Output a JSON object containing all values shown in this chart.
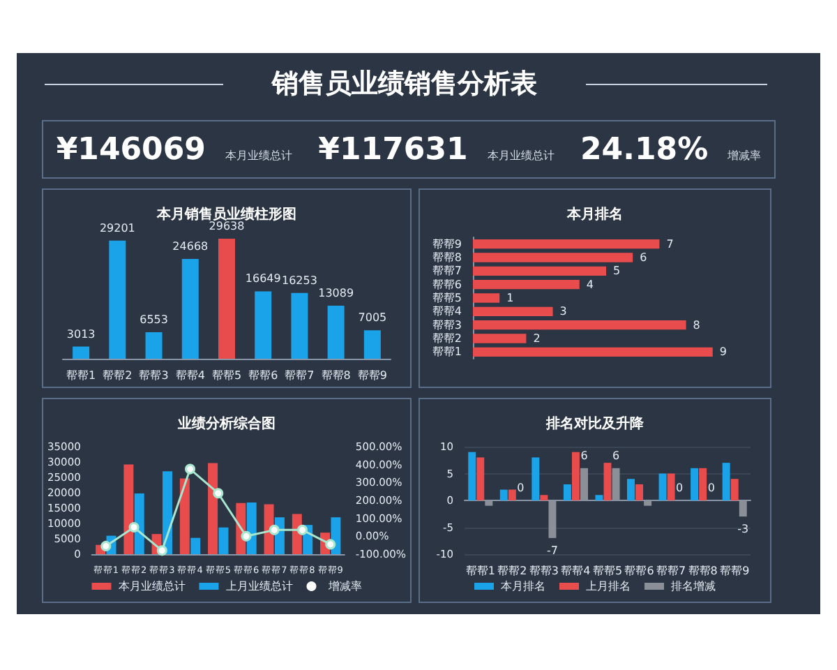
{
  "chart_data": [
    {
      "type": "other",
      "title": "销售员业绩销售分析表",
      "annotations": [
        "¥146069",
        "本月业绩总计",
        "¥117631",
        "本月业绩总计",
        "24.18%",
        "增减率"
      ]
    },
    {
      "type": "bar",
      "title": "本月销售员业绩柱形图",
      "categories": [
        "帮帮1",
        "帮帮2",
        "帮帮3",
        "帮帮4",
        "帮帮5",
        "帮帮6",
        "帮帮7",
        "帮帮8",
        "帮帮9"
      ],
      "values": [
        3013,
        29201,
        6553,
        24668,
        29638,
        16649,
        16253,
        13089,
        7005
      ],
      "colors": [
        "#1aa3e8",
        "#1aa3e8",
        "#1aa3e8",
        "#1aa3e8",
        "#e84c4c",
        "#1aa3e8",
        "#1aa3e8",
        "#1aa3e8",
        "#1aa3e8"
      ],
      "data_labels": true,
      "tick_labels": "x"
    },
    {
      "type": "bar",
      "orientation": "horizontal",
      "title": "本月排名",
      "categories": [
        "帮帮9",
        "帮帮8",
        "帮帮7",
        "帮帮6",
        "帮帮5",
        "帮帮4",
        "帮帮3",
        "帮帮2",
        "帮帮1"
      ],
      "values": [
        7,
        6,
        5,
        4,
        1,
        3,
        8,
        2,
        9
      ],
      "color": "#e84c4c",
      "data_labels": true,
      "tick_labels": "y"
    },
    {
      "type": "bar",
      "title": "业绩分析综合图",
      "categories": [
        "帮帮1",
        "帮帮2",
        "帮帮3",
        "帮帮4",
        "帮帮5",
        "帮帮6",
        "帮帮7",
        "帮帮8",
        "帮帮9"
      ],
      "series": [
        {
          "name": "本月业绩总计",
          "color": "#e84c4c",
          "values": [
            3013,
            29201,
            6553,
            24668,
            29638,
            16649,
            16253,
            13089,
            7005
          ]
        },
        {
          "name": "上月业绩总计",
          "color": "#1aa3e8",
          "values": [
            6000,
            19800,
            27000,
            5300,
            8700,
            16800,
            12000,
            9500,
            12000
          ]
        },
        {
          "name": "增减率",
          "type": "line",
          "axis": "y2",
          "color": "#a8e6cf",
          "values": [
            -55,
            50,
            -80,
            375,
            240,
            0,
            35,
            35,
            -45
          ]
        }
      ],
      "ylim": [
        0,
        35000
      ],
      "yticks": [
        0,
        5000,
        10000,
        15000,
        20000,
        25000,
        30000,
        35000
      ],
      "y2lim": [
        -100,
        500
      ],
      "y2ticks": [
        {
          "value": -100,
          "label": "-100.00%"
        },
        {
          "value": 0,
          "label": "0.00%"
        },
        {
          "value": 100,
          "label": "100.00%"
        },
        {
          "value": 200,
          "label": "200.00%"
        },
        {
          "value": 300,
          "label": "300.00%"
        },
        {
          "value": 400,
          "label": "400.00%"
        },
        {
          "value": 500,
          "label": "500.00%"
        }
      ],
      "legend": "bottom",
      "marker": "circle"
    },
    {
      "type": "bar",
      "title": "排名对比及升降",
      "categories": [
        "帮帮1",
        "帮帮2",
        "帮帮3",
        "帮帮4",
        "帮帮5",
        "帮帮6",
        "帮帮7",
        "帮帮8",
        "帮帮9"
      ],
      "series": [
        {
          "name": "本月排名",
          "color": "#1aa3e8",
          "values": [
            9,
            2,
            8,
            3,
            1,
            4,
            5,
            6,
            7
          ]
        },
        {
          "name": "上月排名",
          "color": "#e84c4c",
          "values": [
            8,
            2,
            1,
            9,
            7,
            3,
            5,
            6,
            4
          ]
        },
        {
          "name": "排名增减",
          "color": "#8a8f98",
          "values": [
            -1,
            0,
            -7,
            6,
            6,
            -1,
            0,
            0,
            -3
          ],
          "value_labels": [
            null,
            "0",
            "-7",
            "6",
            "6",
            null,
            "0",
            "0",
            "-3"
          ]
        }
      ],
      "ylim": [
        -10,
        10
      ],
      "yticks": [
        -10,
        -5,
        0,
        5,
        10
      ],
      "grid": "y",
      "legend": "bottom"
    }
  ]
}
